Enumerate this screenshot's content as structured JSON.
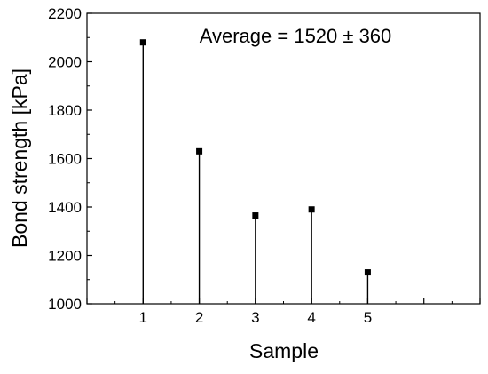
{
  "chart_data": {
    "type": "scatter",
    "style": "stem",
    "annotation": "Average = 1520 ± 360",
    "xlabel": "Sample",
    "ylabel": "Bond strength [kPa]",
    "x": [
      1,
      2,
      3,
      4,
      5
    ],
    "y": [
      2080,
      1630,
      1365,
      1390,
      1130
    ],
    "xlim": [
      0,
      7
    ],
    "ylim": [
      1000,
      2200
    ],
    "x_ticks": [
      1,
      2,
      3,
      4,
      5
    ],
    "y_ticks": [
      1000,
      1200,
      1400,
      1600,
      1800,
      2000,
      2200
    ],
    "x_tick_labels": [
      "1",
      "2",
      "3",
      "4",
      "5"
    ],
    "y_tick_labels": [
      "1000",
      "1200",
      "1400",
      "1600",
      "1800",
      "2000",
      "2200"
    ],
    "grid": false,
    "legend": "none",
    "marker": "square",
    "color": "#000000"
  }
}
